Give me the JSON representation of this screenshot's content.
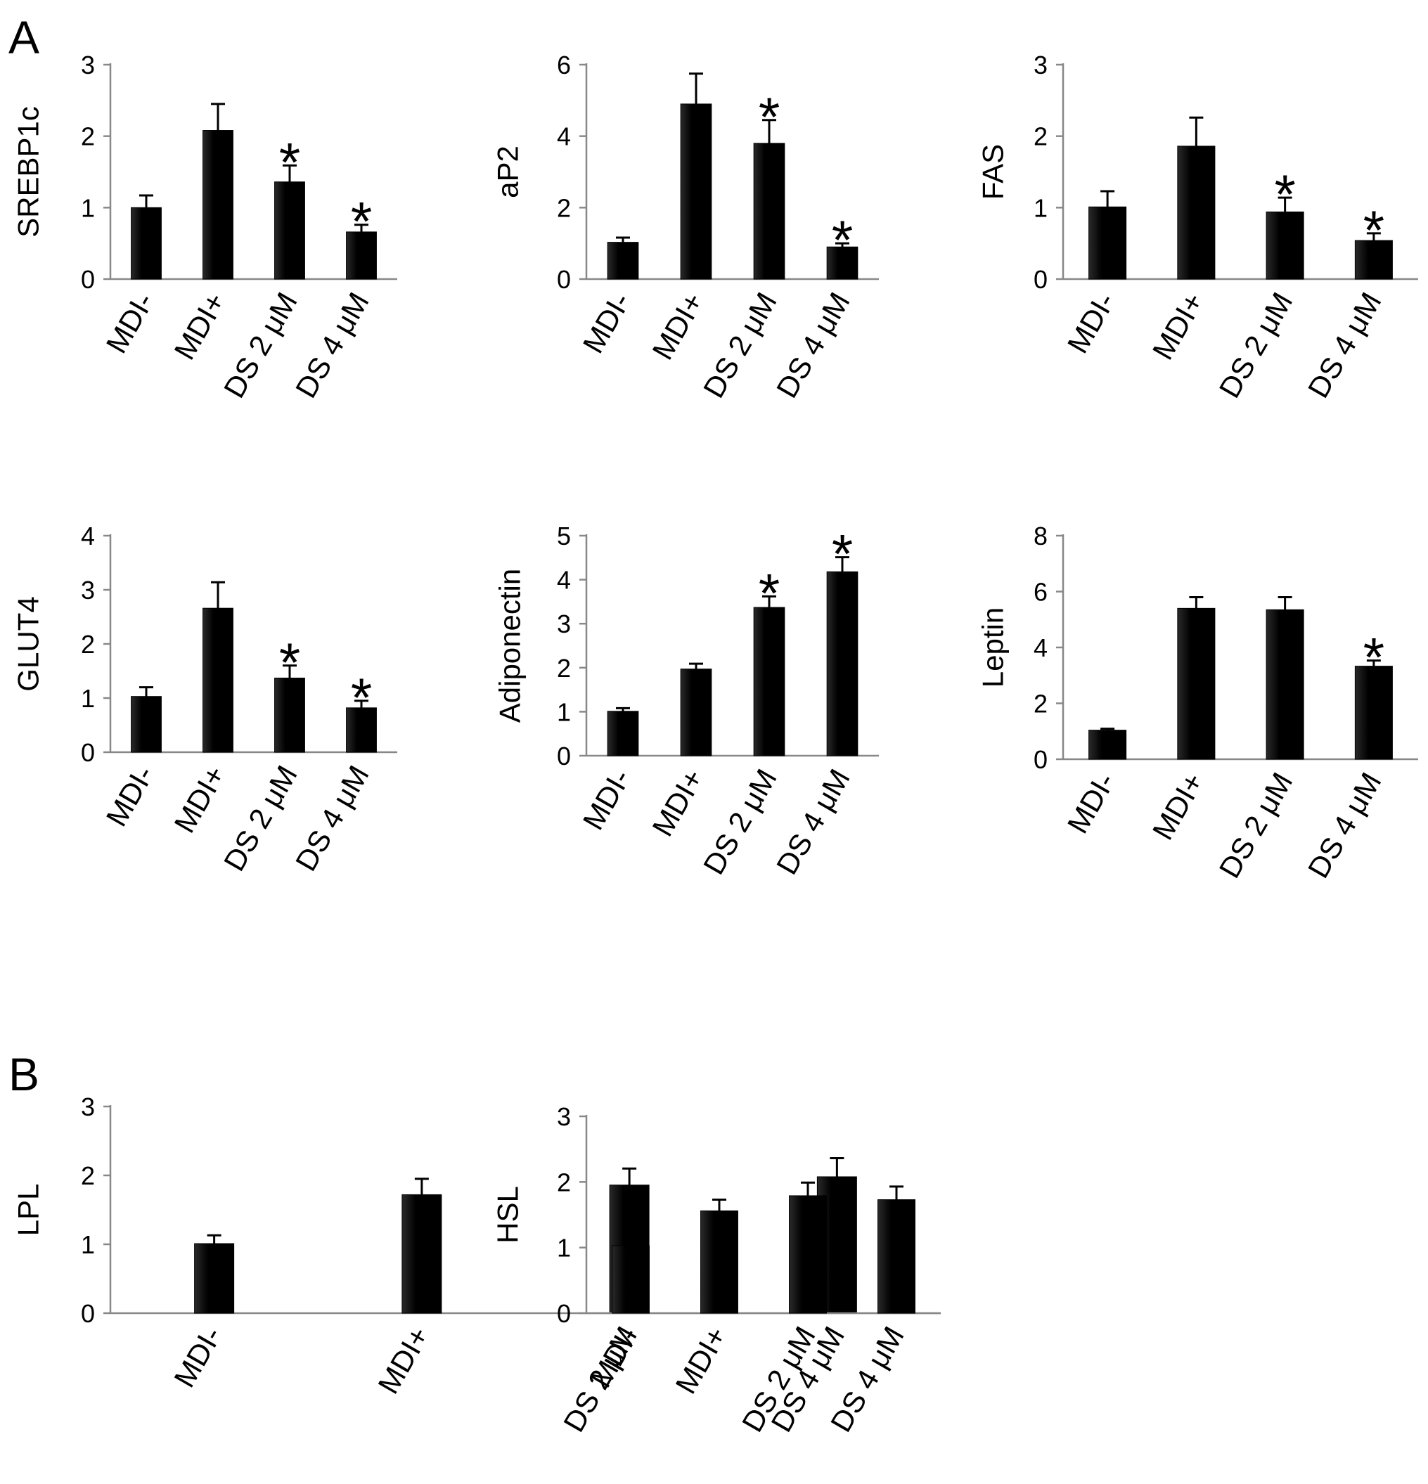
{
  "panels": [
    {
      "letter": "A"
    },
    {
      "letter": "B"
    }
  ],
  "chart_data": [
    {
      "type": "bar",
      "panel": "A",
      "categories": [
        "MDI-",
        "MDI+",
        "DS 2 μM",
        "DS 4 μM"
      ],
      "ylabel": "SREBP1c",
      "yticks": [
        0,
        1,
        2,
        3
      ],
      "ylim": [
        0,
        3
      ],
      "values": [
        1.0,
        2.08,
        1.36,
        0.66
      ],
      "errors": [
        0.17,
        0.37,
        0.23,
        0.1
      ],
      "annotations": [
        "",
        "",
        "*",
        "*"
      ]
    },
    {
      "type": "bar",
      "panel": "A",
      "categories": [
        "MDI-",
        "MDI+",
        "DS 2 μM",
        "DS 4 μM"
      ],
      "ylabel": "aP2",
      "yticks": [
        0,
        2,
        4,
        6
      ],
      "ylim": [
        0,
        6
      ],
      "values": [
        1.03,
        4.9,
        3.8,
        0.9
      ],
      "errors": [
        0.13,
        0.85,
        0.65,
        0.1
      ],
      "annotations": [
        "",
        "",
        "*",
        "*"
      ]
    },
    {
      "type": "bar",
      "panel": "A",
      "categories": [
        "MDI-",
        "MDI+",
        "DS 2 μM",
        "DS 4 μM"
      ],
      "ylabel": "FAS",
      "yticks": [
        0,
        1,
        2,
        3
      ],
      "ylim": [
        0,
        3
      ],
      "values": [
        1.01,
        1.86,
        0.94,
        0.54
      ],
      "errors": [
        0.22,
        0.4,
        0.2,
        0.1
      ],
      "annotations": [
        "",
        "",
        "*",
        "*"
      ]
    },
    {
      "type": "bar",
      "panel": "A",
      "categories": [
        "MDI-",
        "MDI+",
        "DS 2 μM",
        "DS 4 μM"
      ],
      "ylabel": "GLUT4",
      "yticks": [
        0,
        1,
        2,
        3,
        4
      ],
      "ylim": [
        0,
        4
      ],
      "values": [
        1.03,
        2.66,
        1.37,
        0.82
      ],
      "errors": [
        0.17,
        0.48,
        0.23,
        0.13
      ],
      "annotations": [
        "",
        "",
        "*",
        "*"
      ]
    },
    {
      "type": "bar",
      "panel": "A",
      "categories": [
        "MDI-",
        "MDI+",
        "DS 2 μM",
        "DS 4 μM"
      ],
      "ylabel": "Adiponectin",
      "yticks": [
        0,
        1,
        2,
        3,
        4,
        5
      ],
      "ylim": [
        0,
        5
      ],
      "values": [
        1.01,
        1.97,
        3.37,
        4.18
      ],
      "errors": [
        0.07,
        0.12,
        0.25,
        0.33
      ],
      "annotations": [
        "",
        "",
        "*",
        "*"
      ]
    },
    {
      "type": "bar",
      "panel": "A",
      "categories": [
        "MDI-",
        "MDI+",
        "DS 2 μM",
        "DS 4 μM"
      ],
      "ylabel": "Leptin",
      "yticks": [
        0,
        2,
        4,
        6,
        8
      ],
      "ylim": [
        0,
        8
      ],
      "values": [
        1.04,
        5.4,
        5.35,
        3.33
      ],
      "errors": [
        0.05,
        0.4,
        0.45,
        0.2
      ],
      "annotations": [
        "",
        "",
        "",
        "*"
      ]
    },
    {
      "type": "bar",
      "panel": "B",
      "categories": [
        "MDI-",
        "MDI+",
        "DS 2 μM",
        "DS 4 μM"
      ],
      "ylabel": "LPL",
      "yticks": [
        0,
        1,
        2,
        3
      ],
      "ylim": [
        0,
        3
      ],
      "values": [
        1.01,
        1.72,
        1.86,
        1.98
      ],
      "errors": [
        0.12,
        0.23,
        0.24,
        0.27
      ],
      "annotations": [
        "",
        "",
        "",
        ""
      ]
    },
    {
      "type": "bar",
      "panel": "B",
      "categories": [
        "MDI-",
        "MDI+",
        "DS 2 μM",
        "DS 4 μM"
      ],
      "ylabel": "HSL",
      "yticks": [
        0,
        1,
        2,
        3
      ],
      "ylim": [
        0,
        3
      ],
      "values": [
        1.03,
        1.56,
        1.79,
        1.73
      ],
      "errors": [
        0.1,
        0.17,
        0.2,
        0.2
      ],
      "annotations": [
        "",
        "",
        "",
        ""
      ]
    }
  ]
}
